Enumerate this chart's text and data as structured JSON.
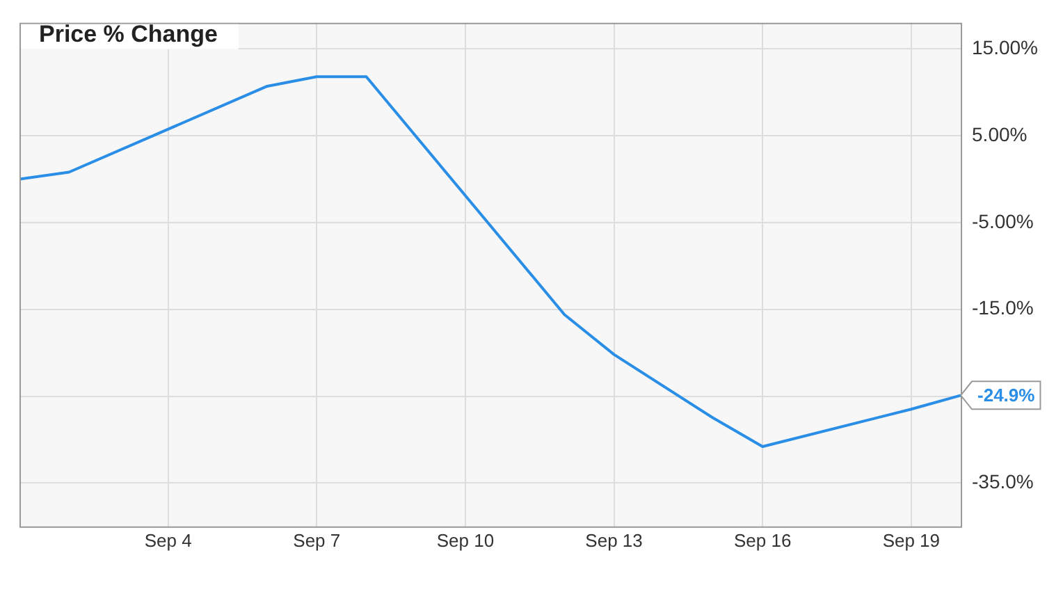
{
  "chart_data": {
    "type": "line",
    "title": "Price % Change",
    "x": [
      "--09-01",
      "--09-02",
      "--09-06",
      "--09-07",
      "--09-08",
      "--09-12",
      "--09-13",
      "--09-15",
      "--09-16",
      "--09-19",
      "--09-20"
    ],
    "series": [
      {
        "color": "#2a8ee6",
        "values": [
          0,
          0.8,
          10.7,
          11.8,
          11.8,
          -15.6,
          -20.2,
          -27.5,
          -30.8,
          -26.5,
          -24.9
        ],
        "value_labels": [
          null,
          null,
          null,
          null,
          null,
          null,
          null,
          null,
          null,
          null,
          "-24.9%"
        ]
      }
    ],
    "xlim": [
      "--09-01",
      "--09-20"
    ],
    "xticks": [
      {
        "value": "--09-04",
        "label": "Sep 4"
      },
      {
        "value": "--09-07",
        "label": "Sep 7"
      },
      {
        "value": "--09-10",
        "label": "Sep 10"
      },
      {
        "value": "--09-13",
        "label": "Sep 13"
      },
      {
        "value": "--09-16",
        "label": "Sep 16"
      },
      {
        "value": "--09-19",
        "label": "Sep 19"
      }
    ],
    "ylim": [
      -40,
      18
    ],
    "yticks": [
      {
        "value": 15,
        "label": "15.00%"
      },
      {
        "value": 5,
        "label": "5.00%"
      },
      {
        "value": -5,
        "label": "-5.00%"
      },
      {
        "value": -15,
        "label": "-15.0%"
      },
      {
        "value": -25,
        "label": null
      },
      {
        "value": -35,
        "label": "-35.0%"
      }
    ],
    "grid": true,
    "legend": false,
    "marker": "none",
    "line_style": "solid"
  }
}
